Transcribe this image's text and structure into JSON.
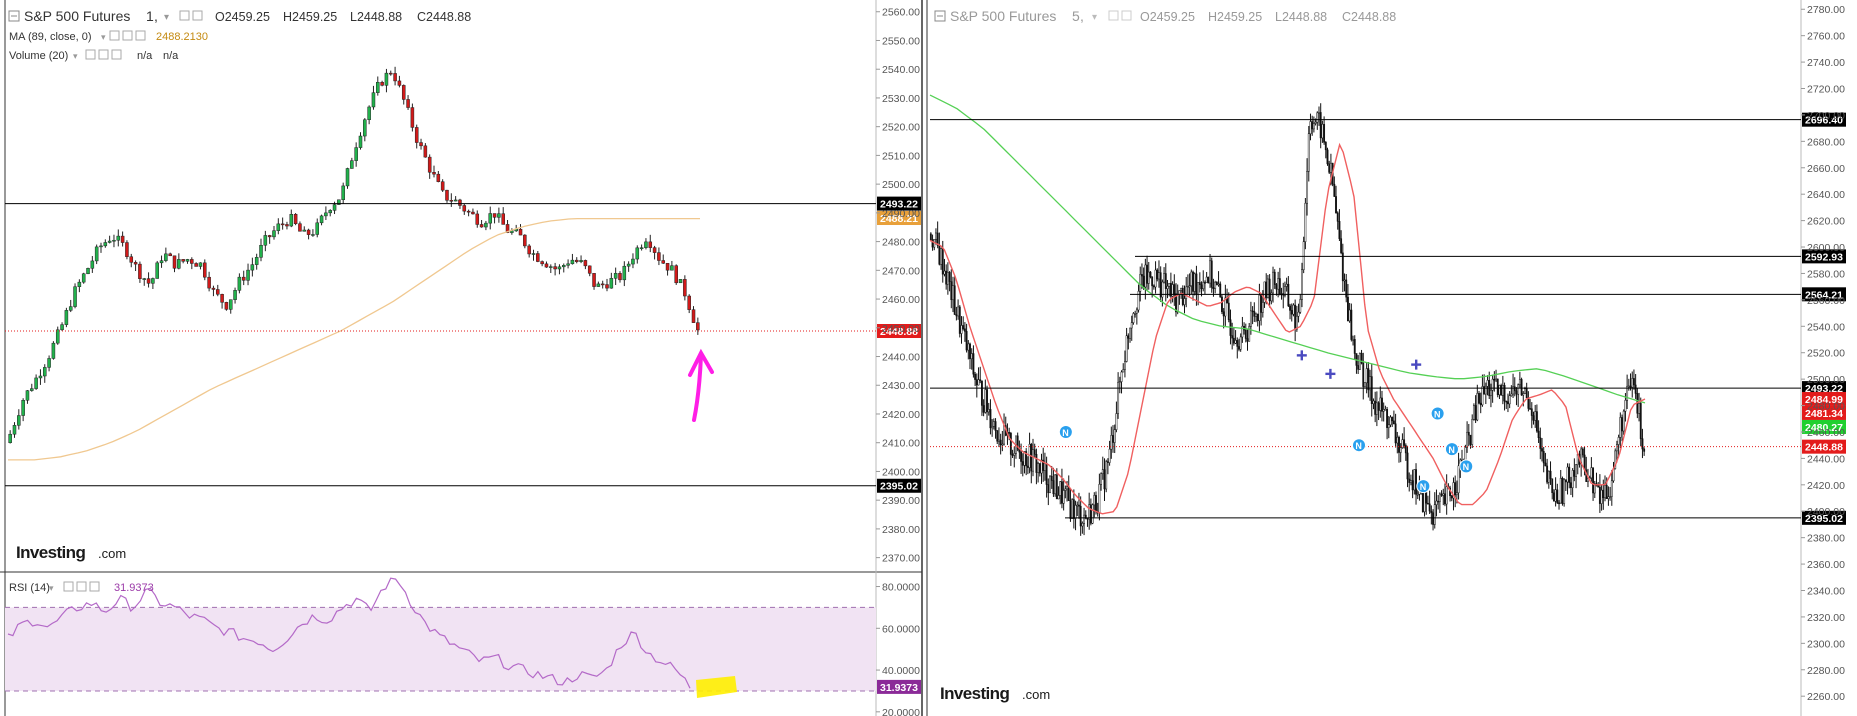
{
  "left_panel": {
    "symbol": "S&P 500 Futures",
    "interval": "1",
    "ohlc": {
      "o": "O2459.25",
      "h": "H2459.25",
      "l": "L2448.88",
      "c": "C2448.88"
    },
    "ma_label": "MA (89, close, 0)",
    "ma_value": "2488.2130",
    "volume_label": "Volume (20)",
    "volume_values": [
      "n/a",
      "n/a"
    ],
    "rsi_label": "RSI (14)",
    "rsi_value": "31.9373",
    "logo": "Investing",
    "logo_suffix": ".com"
  },
  "right_panel": {
    "symbol": "S&P 500 Futures",
    "interval": "5",
    "ohlc": {
      "o": "O2459.25",
      "h": "H2459.25",
      "l": "L2448.88",
      "c": "C2448.88"
    },
    "logo": "Investing",
    "logo_suffix": ".com"
  },
  "colors": {
    "up": "#22b14c",
    "down": "#d01a1a",
    "ma": "#f0c890",
    "rsi_line": "#b46ac8",
    "rsi_band": "#f1e3f3",
    "arrow": "#ff1ee6",
    "highlight": "#ffee00"
  },
  "chart_data": [
    {
      "type": "candlestick",
      "name": "S&P 500 Futures, 1",
      "ylim": [
        2365,
        2562
      ],
      "yticks": [
        "2560.00",
        "2550.00",
        "2540.00",
        "2530.00",
        "2520.00",
        "2510.00",
        "2500.00",
        "2490.00",
        "2480.00",
        "2470.00",
        "2460.00",
        "2450.00",
        "2440.00",
        "2430.00",
        "2420.00",
        "2410.00",
        "2400.00",
        "2390.00",
        "2380.00",
        "2370.00"
      ],
      "close_series": [
        2413,
        2425,
        2432,
        2440,
        2450,
        2462,
        2470,
        2478,
        2482,
        2478,
        2470,
        2465,
        2476,
        2472,
        2474,
        2472,
        2462,
        2458,
        2466,
        2472,
        2480,
        2485,
        2488,
        2482,
        2484,
        2492,
        2496,
        2512,
        2525,
        2535,
        2540,
        2528,
        2515,
        2505,
        2496,
        2494,
        2490,
        2487,
        2490,
        2484,
        2482,
        2476,
        2473,
        2470,
        2474,
        2472,
        2464,
        2466,
        2468,
        2476,
        2482,
        2474,
        2470,
        2462,
        2449
      ],
      "ma_series": [
        2404,
        2404,
        2405,
        2407,
        2410,
        2414,
        2419,
        2424,
        2429,
        2433,
        2437,
        2441,
        2445,
        2449,
        2454,
        2459,
        2465,
        2471,
        2477,
        2482,
        2485,
        2487,
        2488,
        2488,
        2488,
        2488,
        2488,
        2488
      ],
      "horizontal_lines": [
        {
          "value": 2493.22,
          "label": "2493.22",
          "color": "#000000"
        },
        {
          "value": 2395.02,
          "label": "2395.02",
          "color": "#000000"
        }
      ],
      "price_tags": [
        {
          "value": 2488.21,
          "label": "2488.21",
          "color": "#e8a03a"
        },
        {
          "value": 2448.88,
          "label": "2448.88",
          "color": "#e31b1b"
        }
      ],
      "annotation": "pink hand-drawn up arrow below last candle"
    },
    {
      "type": "line",
      "name": "RSI (14)",
      "ylim": [
        18,
        86
      ],
      "yticks": [
        "80.0000",
        "60.0000",
        "40.0000",
        "20.0000"
      ],
      "bands": [
        70,
        30
      ],
      "values": [
        55,
        62,
        64,
        60,
        66,
        70,
        72,
        68,
        74,
        70,
        78,
        72,
        70,
        66,
        64,
        60,
        58,
        55,
        54,
        50,
        55,
        62,
        66,
        64,
        70,
        74,
        68,
        80,
        84,
        72,
        62,
        56,
        52,
        48,
        44,
        46,
        42,
        40,
        38,
        36,
        34,
        38,
        36,
        40,
        52,
        58,
        48,
        44,
        40,
        32
      ],
      "last_value": "31.9373"
    },
    {
      "type": "candlestick",
      "name": "S&P 500 Futures, 5",
      "ylim": [
        2245,
        2787
      ],
      "yticks": [
        "2780.00",
        "2760.00",
        "2740.00",
        "2720.00",
        "2700.00",
        "2680.00",
        "2660.00",
        "2640.00",
        "2620.00",
        "2600.00",
        "2580.00",
        "2560.00",
        "2540.00",
        "2520.00",
        "2500.00",
        "2480.00",
        "2460.00",
        "2440.00",
        "2420.00",
        "2400.00",
        "2380.00",
        "2360.00",
        "2340.00",
        "2320.00",
        "2300.00",
        "2280.00",
        "2260.00"
      ],
      "close_series": [
        2610,
        2590,
        2560,
        2530,
        2500,
        2480,
        2460,
        2450,
        2445,
        2440,
        2430,
        2420,
        2410,
        2400,
        2395,
        2410,
        2440,
        2500,
        2550,
        2575,
        2578,
        2570,
        2560,
        2568,
        2575,
        2580,
        2560,
        2540,
        2530,
        2550,
        2565,
        2575,
        2560,
        2540,
        2700,
        2690,
        2650,
        2580,
        2520,
        2500,
        2480,
        2470,
        2450,
        2430,
        2410,
        2400,
        2405,
        2420,
        2445,
        2480,
        2495,
        2488,
        2490,
        2492,
        2480,
        2430,
        2410,
        2420,
        2440,
        2430,
        2410,
        2420,
        2470,
        2500,
        2448
      ],
      "red_ma_series": [
        2605,
        2600,
        2575,
        2540,
        2510,
        2480,
        2455,
        2445,
        2440,
        2435,
        2425,
        2412,
        2402,
        2398,
        2400,
        2430,
        2480,
        2530,
        2560,
        2565,
        2560,
        2555,
        2558,
        2566,
        2570,
        2565,
        2550,
        2535,
        2540,
        2560,
        2640,
        2680,
        2640,
        2540,
        2505,
        2485,
        2470,
        2455,
        2440,
        2420,
        2405,
        2405,
        2415,
        2440,
        2470,
        2485,
        2488,
        2492,
        2480,
        2440,
        2420,
        2420,
        2440,
        2480,
        2485
      ],
      "green_ma_series": [
        2715,
        2705,
        2690,
        2670,
        2650,
        2630,
        2610,
        2590,
        2570,
        2555,
        2545,
        2540,
        2538,
        2532,
        2526,
        2520,
        2515,
        2510,
        2505,
        2502,
        2500,
        2502,
        2506,
        2508,
        2502,
        2495,
        2488,
        2482
      ],
      "horizontal_lines": [
        {
          "value": 2696.4,
          "label": "2696.40",
          "color": "#000000"
        },
        {
          "value": 2592.93,
          "label": "2592.93",
          "color": "#000000"
        },
        {
          "value": 2564.21,
          "label": "2564.21",
          "color": "#000000"
        },
        {
          "value": 2493.22,
          "label": "2493.22",
          "color": "#000000"
        },
        {
          "value": 2395.02,
          "label": "2395.02",
          "color": "#000000"
        }
      ],
      "price_tags": [
        {
          "value": 2484.99,
          "label": "2484.99",
          "color": "#e31b1b"
        },
        {
          "value": 2481.34,
          "label": "2481.34",
          "color": "#e31b1b"
        },
        {
          "value": 2480.27,
          "label": "2480.27",
          "color": "#20d030"
        },
        {
          "value": 2448.88,
          "label": "2448.88",
          "color": "#e31b1b"
        }
      ],
      "markers": [
        {
          "kind": "N",
          "x_frac": 0.19,
          "y": 2460
        },
        {
          "kind": "N",
          "x_frac": 0.6,
          "y": 2450
        },
        {
          "kind": "N",
          "x_frac": 0.69,
          "y": 2419
        },
        {
          "kind": "N",
          "x_frac": 0.71,
          "y": 2474
        },
        {
          "kind": "N",
          "x_frac": 0.73,
          "y": 2447
        },
        {
          "kind": "N",
          "x_frac": 0.75,
          "y": 2434
        },
        {
          "kind": "+",
          "x_frac": 0.52,
          "y": 2518
        },
        {
          "kind": "+",
          "x_frac": 0.56,
          "y": 2504
        },
        {
          "kind": "+",
          "x_frac": 0.68,
          "y": 2511
        }
      ]
    }
  ]
}
